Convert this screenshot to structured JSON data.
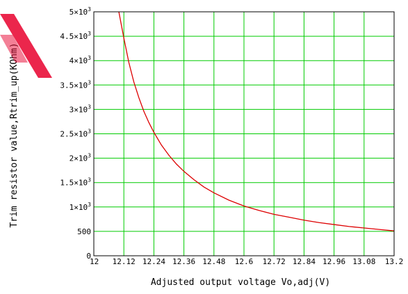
{
  "chart_data": {
    "type": "line",
    "xlabel": "Adjusted output voltage Vo,adj(V)",
    "ylabel": "Trim resistor value,Rtrim_up(KOhm)",
    "xlim": [
      12,
      13.2
    ],
    "ylim": [
      0,
      5000
    ],
    "x_ticks": [
      "12",
      "12.12",
      "12.24",
      "12.36",
      "12.48",
      "12.6",
      "12.72",
      "12.84",
      "12.96",
      "13.08",
      "13.2"
    ],
    "x_tick_values": [
      12,
      12.12,
      12.24,
      12.36,
      12.48,
      12.6,
      12.72,
      12.84,
      12.96,
      13.08,
      13.2
    ],
    "y_ticks": [
      {
        "value": 0,
        "mantissa": "0",
        "exp": ""
      },
      {
        "value": 500,
        "mantissa": "500",
        "exp": ""
      },
      {
        "value": 1000,
        "mantissa": "1×10",
        "exp": "3"
      },
      {
        "value": 1500,
        "mantissa": "1.5×10",
        "exp": "3"
      },
      {
        "value": 2000,
        "mantissa": "2×10",
        "exp": "3"
      },
      {
        "value": 2500,
        "mantissa": "2.5×10",
        "exp": "3"
      },
      {
        "value": 3000,
        "mantissa": "3×10",
        "exp": "3"
      },
      {
        "value": 3500,
        "mantissa": "3.5×10",
        "exp": "3"
      },
      {
        "value": 4000,
        "mantissa": "4×10",
        "exp": "3"
      },
      {
        "value": 4500,
        "mantissa": "4.5×10",
        "exp": "3"
      },
      {
        "value": 5000,
        "mantissa": "5×10",
        "exp": "3"
      }
    ],
    "grid": true,
    "grid_color": "#00cc00",
    "series": [
      {
        "color": "#dd0000",
        "x": [
          12.1,
          12.11,
          12.12,
          12.14,
          12.16,
          12.18,
          12.2,
          12.22,
          12.24,
          12.27,
          12.3,
          12.33,
          12.36,
          12.4,
          12.44,
          12.48,
          12.54,
          12.6,
          12.66,
          12.72,
          12.78,
          12.84,
          12.9,
          12.96,
          13.02,
          13.08,
          13.14,
          13.2
        ],
        "y": [
          5000,
          4730,
          4460,
          3960,
          3560,
          3240,
          2960,
          2730,
          2530,
          2270,
          2060,
          1880,
          1730,
          1560,
          1410,
          1290,
          1140,
          1020,
          930,
          850,
          790,
          730,
          680,
          640,
          600,
          570,
          540,
          510
        ]
      }
    ]
  }
}
